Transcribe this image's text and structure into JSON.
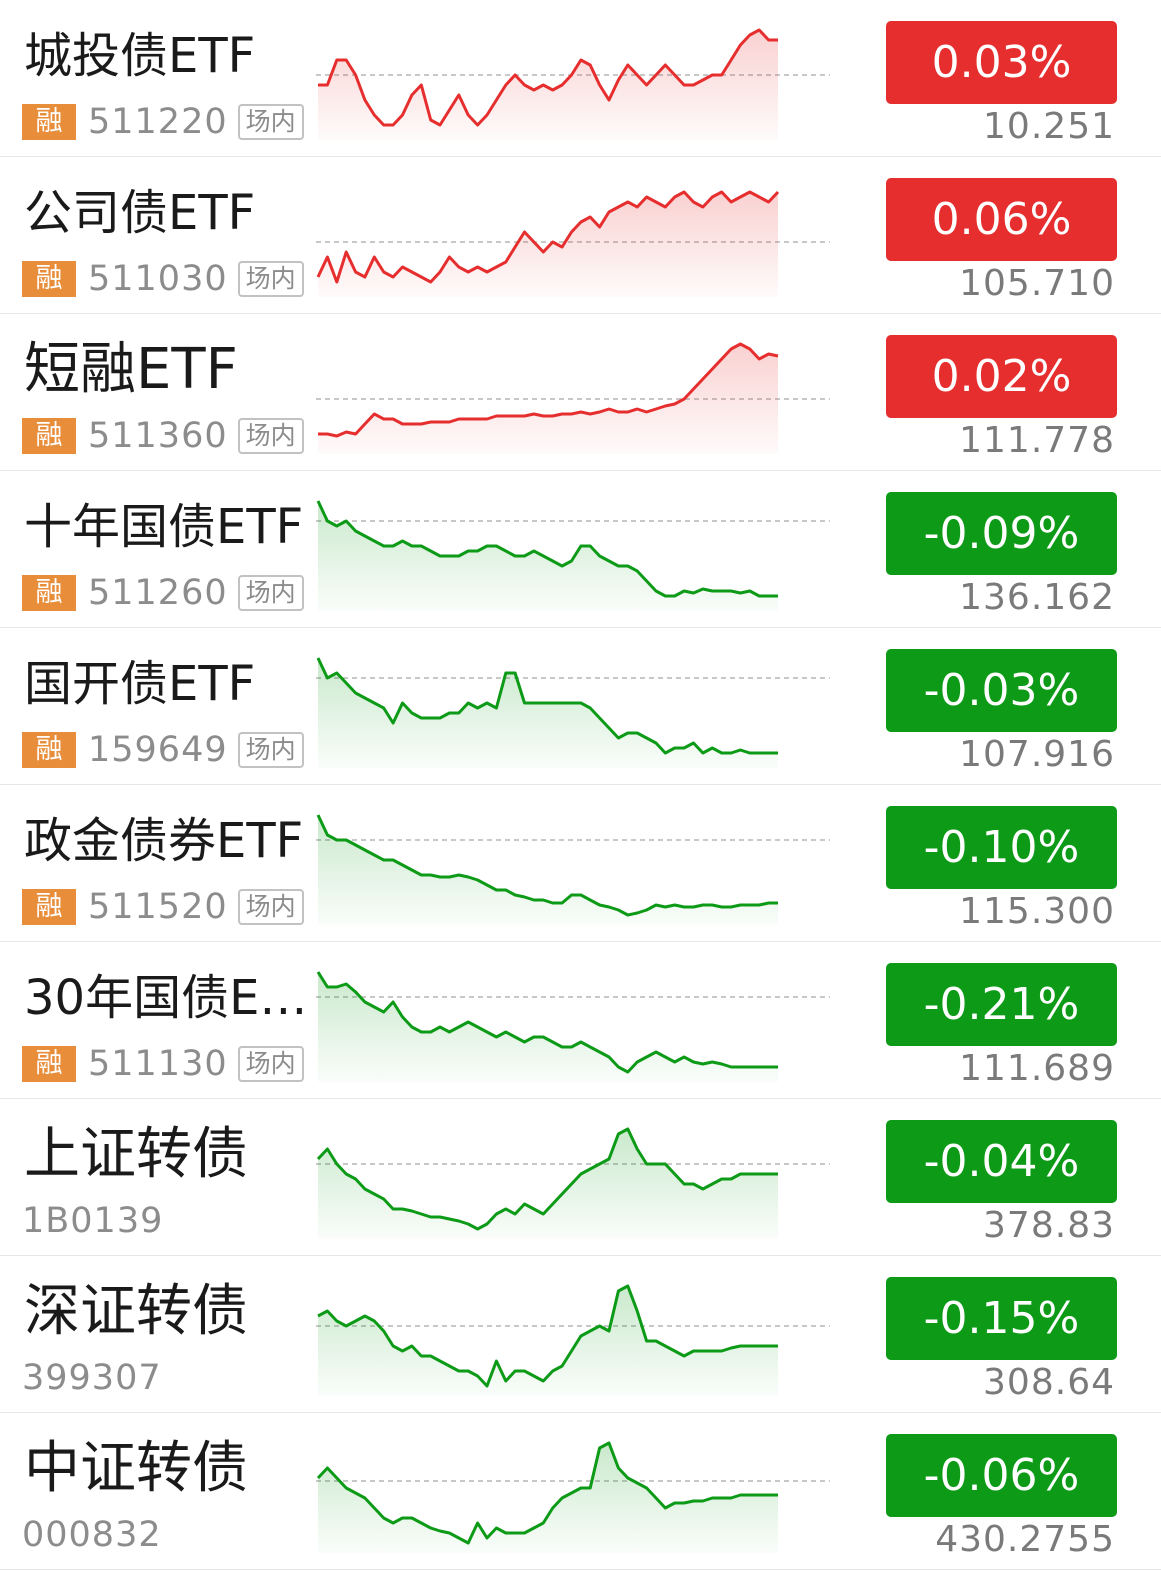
{
  "colors": {
    "up": "#e62e2e",
    "down": "#0c9a17",
    "rong_tag": "#e88d3a"
  },
  "rows": [
    {
      "name": "城投债ETF",
      "tag": "融",
      "code": "511220",
      "venue": "场内",
      "change": "0.03%",
      "price": "10.251",
      "dir": "up",
      "spark": [
        0.45,
        0.45,
        0.7,
        0.7,
        0.55,
        0.3,
        0.15,
        0.05,
        0.05,
        0.15,
        0.35,
        0.45,
        0.1,
        0.05,
        0.2,
        0.35,
        0.15,
        0.05,
        0.15,
        0.3,
        0.45,
        0.55,
        0.45,
        0.4,
        0.45,
        0.4,
        0.45,
        0.55,
        0.7,
        0.65,
        0.45,
        0.3,
        0.5,
        0.65,
        0.55,
        0.45,
        0.55,
        0.65,
        0.55,
        0.45,
        0.45,
        0.5,
        0.55,
        0.55,
        0.7,
        0.85,
        0.95,
        1.0,
        0.9,
        0.9
      ]
    },
    {
      "name": "公司债ETF",
      "tag": "融",
      "code": "511030",
      "venue": "场内",
      "change": "0.06%",
      "price": "105.710",
      "dir": "up",
      "spark": [
        0.1,
        0.3,
        0.05,
        0.35,
        0.15,
        0.1,
        0.3,
        0.15,
        0.1,
        0.2,
        0.15,
        0.1,
        0.05,
        0.15,
        0.3,
        0.2,
        0.15,
        0.2,
        0.15,
        0.2,
        0.25,
        0.4,
        0.55,
        0.45,
        0.35,
        0.45,
        0.4,
        0.55,
        0.65,
        0.7,
        0.6,
        0.75,
        0.8,
        0.85,
        0.8,
        0.9,
        0.85,
        0.8,
        0.9,
        0.95,
        0.85,
        0.8,
        0.9,
        0.95,
        0.85,
        0.9,
        0.95,
        0.9,
        0.85,
        0.95
      ]
    },
    {
      "name": "短融ETF",
      "tag": "融",
      "code": "511360",
      "venue": "场内",
      "change": "0.02%",
      "price": "111.778",
      "dir": "up",
      "spark": [
        0.1,
        0.1,
        0.08,
        0.12,
        0.1,
        0.2,
        0.3,
        0.25,
        0.25,
        0.2,
        0.2,
        0.2,
        0.22,
        0.22,
        0.22,
        0.25,
        0.25,
        0.25,
        0.25,
        0.28,
        0.28,
        0.28,
        0.28,
        0.3,
        0.28,
        0.28,
        0.3,
        0.3,
        0.32,
        0.3,
        0.32,
        0.35,
        0.32,
        0.32,
        0.35,
        0.32,
        0.35,
        0.38,
        0.4,
        0.45,
        0.55,
        0.65,
        0.75,
        0.85,
        0.95,
        1.0,
        0.95,
        0.85,
        0.9,
        0.88
      ]
    },
    {
      "name": "十年国债ETF",
      "tag": "融",
      "code": "511260",
      "venue": "场内",
      "change": "-0.09%",
      "price": "136.162",
      "dir": "down",
      "spark": [
        1.0,
        0.8,
        0.75,
        0.8,
        0.7,
        0.65,
        0.6,
        0.55,
        0.55,
        0.6,
        0.55,
        0.55,
        0.5,
        0.45,
        0.45,
        0.45,
        0.5,
        0.5,
        0.55,
        0.55,
        0.5,
        0.45,
        0.45,
        0.5,
        0.45,
        0.4,
        0.35,
        0.4,
        0.55,
        0.55,
        0.45,
        0.4,
        0.35,
        0.35,
        0.3,
        0.2,
        0.1,
        0.05,
        0.05,
        0.1,
        0.08,
        0.12,
        0.1,
        0.1,
        0.1,
        0.08,
        0.1,
        0.05,
        0.05,
        0.05
      ]
    },
    {
      "name": "国开债ETF",
      "tag": "融",
      "code": "159649",
      "venue": "场内",
      "change": "-0.03%",
      "price": "107.916",
      "dir": "down",
      "spark": [
        1.0,
        0.8,
        0.85,
        0.75,
        0.65,
        0.6,
        0.55,
        0.5,
        0.35,
        0.55,
        0.45,
        0.4,
        0.4,
        0.4,
        0.45,
        0.45,
        0.55,
        0.5,
        0.55,
        0.5,
        0.85,
        0.85,
        0.55,
        0.55,
        0.55,
        0.55,
        0.55,
        0.55,
        0.55,
        0.5,
        0.4,
        0.3,
        0.2,
        0.25,
        0.25,
        0.2,
        0.15,
        0.05,
        0.1,
        0.1,
        0.15,
        0.05,
        0.1,
        0.05,
        0.05,
        0.08,
        0.05,
        0.05,
        0.05,
        0.05
      ]
    },
    {
      "name": "政金债券ETF",
      "tag": "融",
      "code": "511520",
      "venue": "场内",
      "change": "-0.10%",
      "price": "115.300",
      "dir": "down",
      "spark": [
        1.0,
        0.8,
        0.75,
        0.75,
        0.7,
        0.65,
        0.6,
        0.55,
        0.55,
        0.5,
        0.45,
        0.4,
        0.4,
        0.38,
        0.38,
        0.4,
        0.38,
        0.35,
        0.3,
        0.25,
        0.25,
        0.2,
        0.18,
        0.15,
        0.15,
        0.12,
        0.12,
        0.2,
        0.2,
        0.15,
        0.1,
        0.08,
        0.05,
        0.0,
        0.02,
        0.05,
        0.1,
        0.08,
        0.1,
        0.08,
        0.08,
        0.1,
        0.1,
        0.08,
        0.08,
        0.1,
        0.1,
        0.1,
        0.12,
        0.12
      ]
    },
    {
      "name": "30年国债ET...",
      "tag": "融",
      "code": "511130",
      "venue": "场内",
      "change": "-0.21%",
      "price": "111.689",
      "dir": "down",
      "spark": [
        1.0,
        0.85,
        0.85,
        0.88,
        0.8,
        0.7,
        0.65,
        0.6,
        0.7,
        0.55,
        0.45,
        0.4,
        0.4,
        0.45,
        0.4,
        0.45,
        0.5,
        0.45,
        0.4,
        0.35,
        0.4,
        0.35,
        0.3,
        0.35,
        0.35,
        0.3,
        0.25,
        0.25,
        0.3,
        0.25,
        0.2,
        0.15,
        0.05,
        0.0,
        0.1,
        0.15,
        0.2,
        0.15,
        0.1,
        0.15,
        0.1,
        0.08,
        0.1,
        0.08,
        0.05,
        0.05,
        0.05,
        0.05,
        0.05,
        0.05
      ]
    },
    {
      "name": "上证转债",
      "tag": "",
      "code": "1B0139",
      "venue": "",
      "change": "-0.04%",
      "price": "378.83",
      "dir": "down",
      "spark": [
        0.7,
        0.8,
        0.65,
        0.55,
        0.5,
        0.4,
        0.35,
        0.3,
        0.2,
        0.2,
        0.18,
        0.15,
        0.12,
        0.12,
        0.1,
        0.08,
        0.05,
        0.0,
        0.05,
        0.15,
        0.2,
        0.15,
        0.25,
        0.2,
        0.15,
        0.25,
        0.35,
        0.45,
        0.55,
        0.6,
        0.65,
        0.7,
        0.95,
        1.0,
        0.8,
        0.65,
        0.65,
        0.65,
        0.55,
        0.45,
        0.45,
        0.4,
        0.45,
        0.5,
        0.5,
        0.55,
        0.55,
        0.55,
        0.55,
        0.55
      ]
    },
    {
      "name": "深证转债",
      "tag": "",
      "code": "399307",
      "venue": "",
      "change": "-0.15%",
      "price": "308.64",
      "dir": "down",
      "spark": [
        0.7,
        0.75,
        0.65,
        0.6,
        0.65,
        0.7,
        0.65,
        0.55,
        0.4,
        0.35,
        0.4,
        0.3,
        0.3,
        0.25,
        0.2,
        0.15,
        0.15,
        0.1,
        0.0,
        0.25,
        0.05,
        0.15,
        0.15,
        0.1,
        0.05,
        0.15,
        0.2,
        0.35,
        0.5,
        0.55,
        0.6,
        0.55,
        0.95,
        1.0,
        0.75,
        0.45,
        0.45,
        0.4,
        0.35,
        0.3,
        0.35,
        0.35,
        0.35,
        0.35,
        0.38,
        0.4,
        0.4,
        0.4,
        0.4,
        0.4
      ]
    },
    {
      "name": "中证转债",
      "tag": "",
      "code": "000832",
      "venue": "",
      "change": "-0.06%",
      "price": "430.2755",
      "dir": "down",
      "spark": [
        0.65,
        0.75,
        0.65,
        0.55,
        0.5,
        0.45,
        0.35,
        0.25,
        0.2,
        0.25,
        0.25,
        0.2,
        0.15,
        0.12,
        0.1,
        0.05,
        0.0,
        0.2,
        0.05,
        0.15,
        0.1,
        0.1,
        0.1,
        0.15,
        0.2,
        0.35,
        0.45,
        0.5,
        0.55,
        0.55,
        0.95,
        1.0,
        0.75,
        0.65,
        0.6,
        0.55,
        0.45,
        0.35,
        0.4,
        0.4,
        0.42,
        0.42,
        0.45,
        0.45,
        0.45,
        0.48,
        0.48,
        0.48,
        0.48,
        0.48
      ]
    }
  ]
}
